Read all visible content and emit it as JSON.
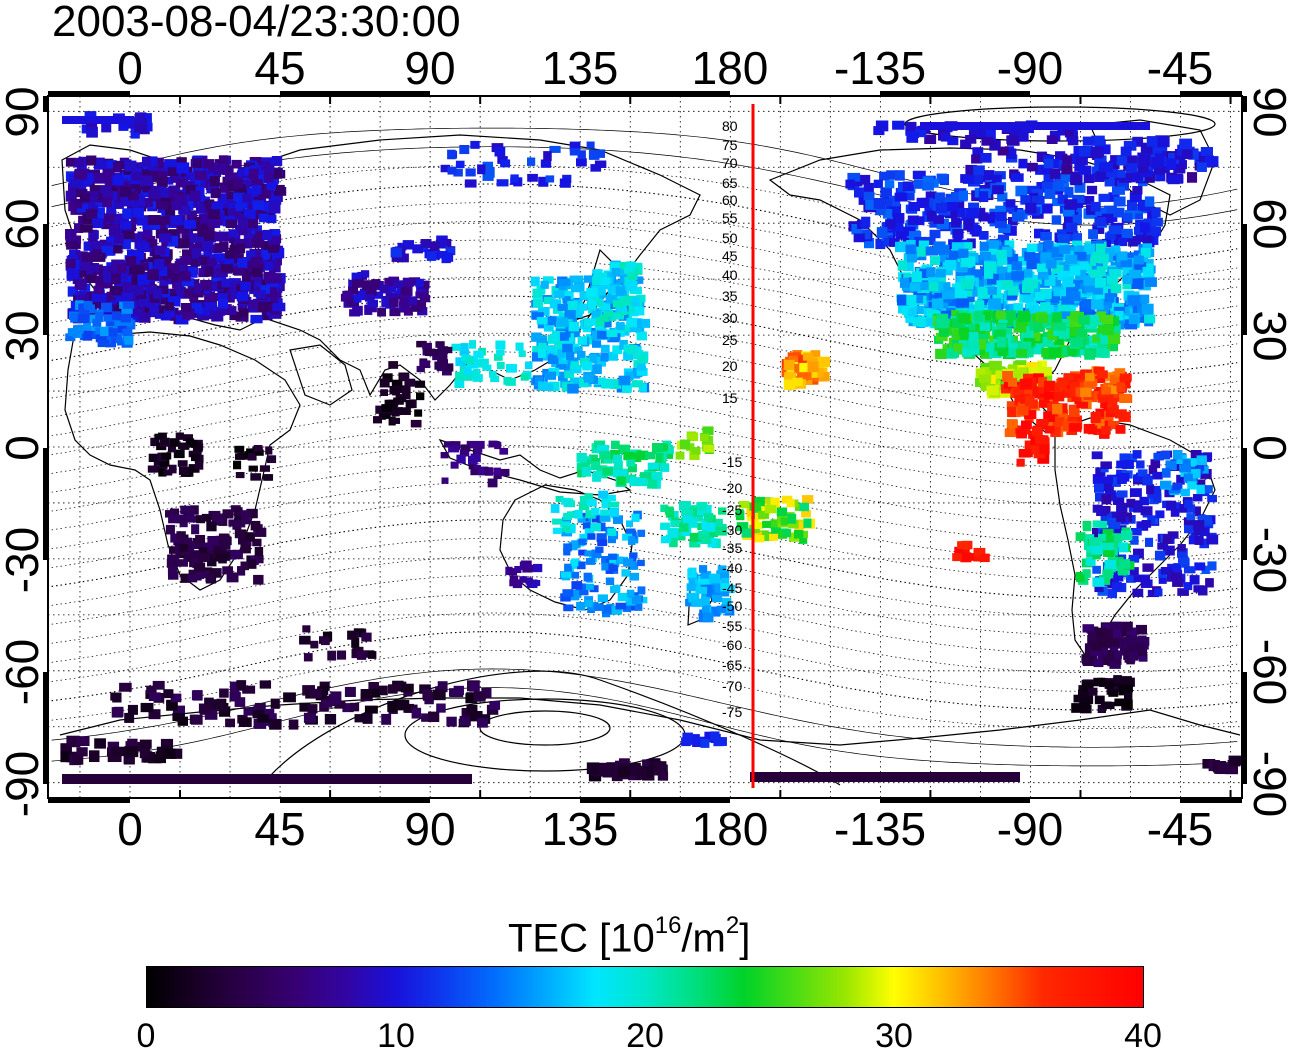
{
  "title": "2003-08-04/23:30:00",
  "map": {
    "lon_ticks": [
      "0",
      "45",
      "90",
      "135",
      "180",
      "-135",
      "-90",
      "-45"
    ],
    "lat_ticks": [
      "90",
      "60",
      "30",
      "0",
      "-30",
      "-60",
      "-90"
    ],
    "terminator_longitude_label": "red meridian near -172",
    "mlat_labels": [
      "80",
      "75",
      "70",
      "65",
      "60",
      "55",
      "50",
      "45",
      "40",
      "35",
      "30",
      "25",
      "20",
      "15",
      "-15",
      "-20",
      "-25",
      "-30",
      "-35",
      "-40",
      "-45",
      "-50",
      "-55",
      "-60",
      "-65",
      "-70",
      "-75"
    ]
  },
  "colorbar": {
    "label_prefix": "TEC  [10",
    "label_exp": "16",
    "label_mid": "/m",
    "label_exp2": "2",
    "label_suffix": "]",
    "ticks": [
      "0",
      "10",
      "20",
      "30",
      "40"
    ],
    "min": 0,
    "max": 40,
    "colormap": "rainbow (black-purple-blue-cyan-green-yellow-orange-red)"
  },
  "colors": {
    "red_line": "#ff0000",
    "background": "#ffffff"
  }
}
